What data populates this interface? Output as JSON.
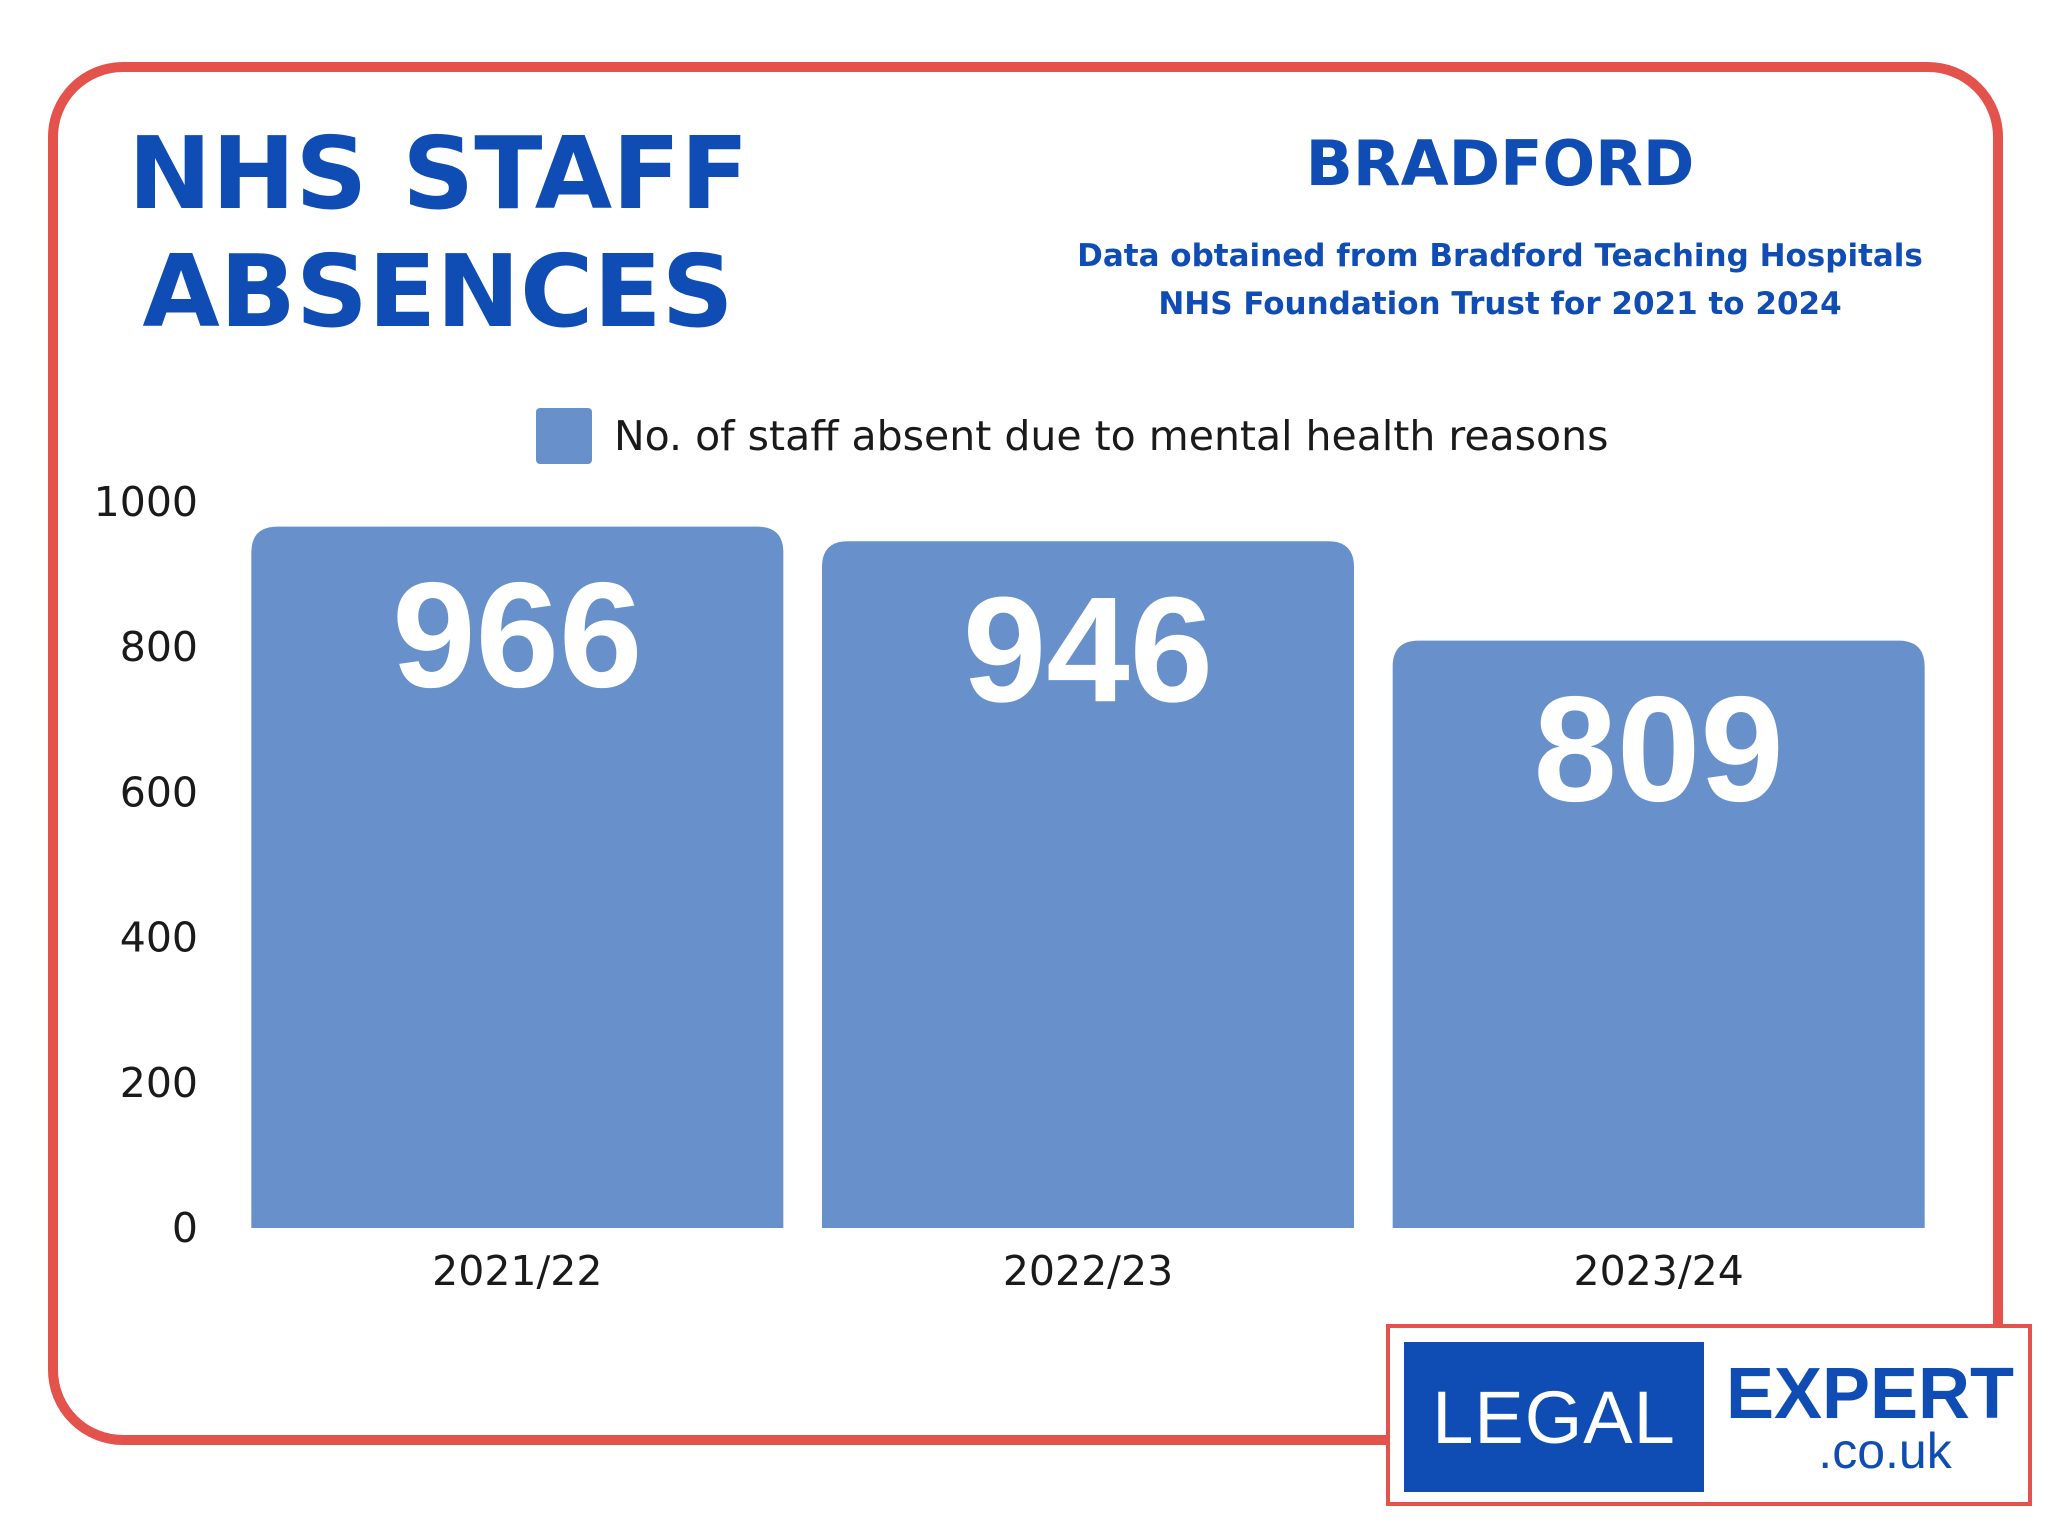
{
  "header": {
    "title_line1": "NHS STAFF",
    "title_line2": "ABSENCES",
    "region": "BRADFORD",
    "source_line1": "Data obtained from Bradford Teaching Hospitals",
    "source_line2": "NHS Foundation Trust for 2021 to 2024"
  },
  "colors": {
    "accent": "#0f4db4",
    "bar": "#6890cb",
    "frame": "#e4524c"
  },
  "chart_data": {
    "type": "bar",
    "categories": [
      "2021/22",
      "2022/23",
      "2023/24"
    ],
    "series": [
      {
        "name": "No. of staff absent due to mental health reasons",
        "values": [
          966,
          946,
          809
        ]
      }
    ],
    "data_labels": [
      "966",
      "946",
      "809"
    ],
    "ylim": [
      0,
      1000
    ],
    "y_ticks": [
      0,
      200,
      400,
      600,
      800,
      1000
    ],
    "grid": false,
    "legend_position": "top"
  },
  "logo": {
    "left_text": "LEGAL",
    "right_text": "EXPERT",
    "sub_text": ".co.uk"
  }
}
